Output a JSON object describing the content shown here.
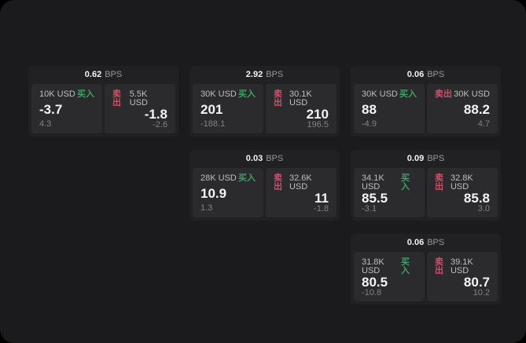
{
  "labels": {
    "bps": "BPS",
    "buy": "买入",
    "sell": "卖出"
  },
  "colors": {
    "backdrop": "#000000",
    "page_background": "#1b1b1d",
    "card_background": "#212123",
    "panel_background": "#2b2b2d",
    "buy_accent": "#3da066",
    "sell_accent": "#d14f68",
    "primary_text": "#f4f4f5",
    "secondary_text": "#bebec2",
    "muted_text": "#828286"
  },
  "cards": [
    {
      "bps": "0.62",
      "buy": {
        "size": "10K USD",
        "price": "-3.7",
        "delta": "4.3"
      },
      "sell": {
        "size": "5.5K USD",
        "price": "-1.8",
        "delta": "-2.6"
      }
    },
    {
      "bps": "2.92",
      "buy": {
        "size": "30K USD",
        "price": "201",
        "delta": "-188.1"
      },
      "sell": {
        "size": "30.1K USD",
        "price": "210",
        "delta": "196.5"
      }
    },
    {
      "bps": "0.06",
      "buy": {
        "size": "30K USD",
        "price": "88",
        "delta": "-4.9"
      },
      "sell": {
        "size": "30K USD",
        "price": "88.2",
        "delta": "4.7"
      }
    },
    {
      "bps": "0.03",
      "buy": {
        "size": "28K USD",
        "price": "10.9",
        "delta": "1.3"
      },
      "sell": {
        "size": "32.6K USD",
        "price": "11",
        "delta": "-1.8"
      }
    },
    {
      "bps": "0.09",
      "buy": {
        "size": "34.1K USD",
        "price": "85.5",
        "delta": "-3.1"
      },
      "sell": {
        "size": "32.8K USD",
        "price": "85.8",
        "delta": "3.0"
      }
    },
    {
      "bps": "0.06",
      "buy": {
        "size": "31.8K USD",
        "price": "80.5",
        "delta": "-10.8"
      },
      "sell": {
        "size": "39.1K USD",
        "price": "80.7",
        "delta": "10.2"
      }
    }
  ]
}
